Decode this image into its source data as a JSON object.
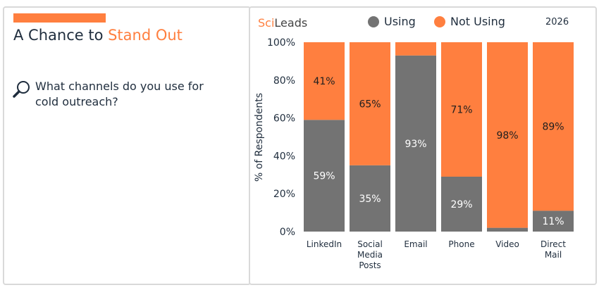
{
  "header": {
    "title_prefix": "A Chance to ",
    "title_highlight": "Stand Out",
    "question": "What channels do you use for cold outreach?",
    "question_icon": "magnifier-icon"
  },
  "brand": {
    "logo_part1": "Sci",
    "logo_part2": "Leads",
    "year": "2026"
  },
  "colors": {
    "using": "#737373",
    "not_using": "#ff7f3f",
    "text": "#1f2d3d"
  },
  "chart_data": {
    "type": "bar",
    "stacked": true,
    "categories": [
      [
        "LinkedIn"
      ],
      [
        "Social",
        "Media",
        "Posts"
      ],
      [
        "Email"
      ],
      [
        "Phone"
      ],
      [
        "Video"
      ],
      [
        "Direct",
        "Mail"
      ]
    ],
    "series": [
      {
        "name": "Using",
        "values": [
          59,
          35,
          93,
          29,
          2,
          11
        ],
        "labels": [
          "59%",
          "35%",
          "93%",
          "29%",
          null,
          "11%"
        ]
      },
      {
        "name": "Not Using",
        "values": [
          41,
          65,
          7,
          71,
          98,
          89
        ],
        "labels": [
          "41%",
          "65%",
          null,
          "71%",
          "98%",
          "89%"
        ]
      }
    ],
    "ylabel": "% of Respondents",
    "ylim": [
      0,
      100
    ],
    "yticks": [
      "0%",
      "20%",
      "40%",
      "60%",
      "80%",
      "100%"
    ],
    "legend": "top",
    "grid": false
  }
}
